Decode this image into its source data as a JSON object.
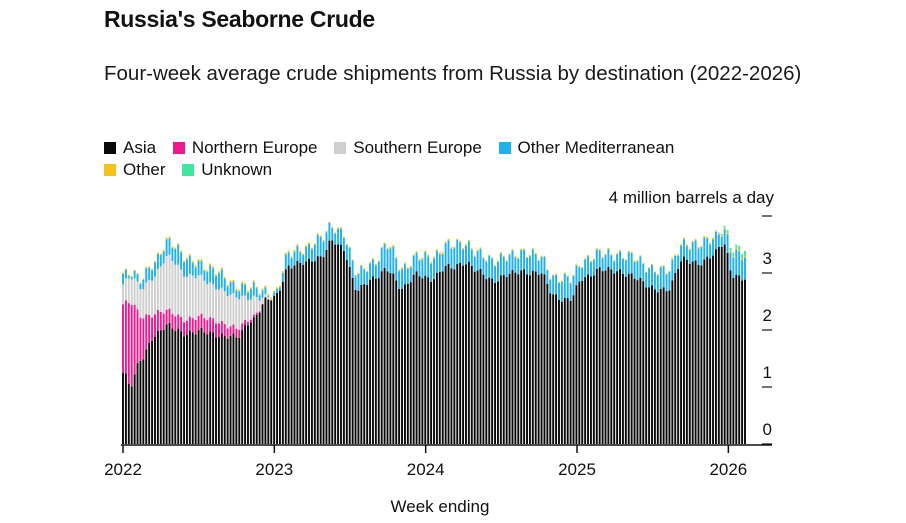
{
  "colors": {
    "Asia": "#0a0a0a",
    "Northern Europe": "#ec1a8c",
    "Southern Europe": "#cfcfcf",
    "Other Mediterranean": "#1fb0ee",
    "Other": "#f5c218",
    "Unknown": "#3ee6a0"
  },
  "chart_data": {
    "type": "bar",
    "stacked": true,
    "title": "Russia's Seaborne Crude",
    "subtitle": "Four-week average crude shipments from Russia by destination (2022-2026)",
    "xlabel": "Week ending",
    "ylabel": "4 million barrels a day",
    "ylim": [
      0,
      4
    ],
    "yticks": [
      "0",
      "1",
      "2",
      "3"
    ],
    "xticks": [
      "2022",
      "2023",
      "2024",
      "2025",
      "2026"
    ],
    "x_range": [
      2022.0,
      2026.11
    ],
    "legend": [
      "Asia",
      "Northern Europe",
      "Southern Europe",
      "Other Mediterranean",
      "Other",
      "Unknown"
    ],
    "series": [
      {
        "name": "Asia",
        "anchors": [
          [
            2022.0,
            1.25
          ],
          [
            2022.05,
            1.0
          ],
          [
            2022.12,
            1.5
          ],
          [
            2022.2,
            1.9
          ],
          [
            2022.3,
            2.05
          ],
          [
            2022.45,
            1.95
          ],
          [
            2022.6,
            1.95
          ],
          [
            2022.75,
            1.85
          ],
          [
            2022.85,
            2.2
          ],
          [
            2022.95,
            2.5
          ],
          [
            2023.0,
            2.55
          ],
          [
            2023.1,
            3.15
          ],
          [
            2023.2,
            3.15
          ],
          [
            2023.3,
            3.3
          ],
          [
            2023.38,
            3.55
          ],
          [
            2023.45,
            3.4
          ],
          [
            2023.55,
            2.75
          ],
          [
            2023.65,
            2.85
          ],
          [
            2023.75,
            3.1
          ],
          [
            2023.85,
            2.7
          ],
          [
            2023.95,
            3.0
          ],
          [
            2024.05,
            2.9
          ],
          [
            2024.15,
            3.1
          ],
          [
            2024.25,
            3.2
          ],
          [
            2024.35,
            3.0
          ],
          [
            2024.45,
            2.9
          ],
          [
            2024.55,
            2.95
          ],
          [
            2024.65,
            3.05
          ],
          [
            2024.75,
            3.0
          ],
          [
            2024.85,
            2.6
          ],
          [
            2024.95,
            2.55
          ],
          [
            2025.05,
            2.9
          ],
          [
            2025.15,
            3.1
          ],
          [
            2025.25,
            3.0
          ],
          [
            2025.35,
            3.0
          ],
          [
            2025.5,
            2.7
          ],
          [
            2025.6,
            2.75
          ],
          [
            2025.7,
            3.2
          ],
          [
            2025.8,
            3.2
          ],
          [
            2025.9,
            3.3
          ],
          [
            2025.97,
            3.5
          ],
          [
            2026.03,
            3.0
          ],
          [
            2026.11,
            2.9
          ]
        ]
      },
      {
        "name": "Northern Europe",
        "anchors": [
          [
            2022.0,
            1.2
          ],
          [
            2022.05,
            1.45
          ],
          [
            2022.12,
            0.75
          ],
          [
            2022.2,
            0.4
          ],
          [
            2022.3,
            0.25
          ],
          [
            2022.45,
            0.25
          ],
          [
            2022.6,
            0.25
          ],
          [
            2022.75,
            0.15
          ],
          [
            2022.85,
            0.05
          ],
          [
            2022.95,
            0.0
          ],
          [
            2023.0,
            0.0
          ],
          [
            2026.11,
            0.0
          ]
        ]
      },
      {
        "name": "Southern Europe",
        "anchors": [
          [
            2022.0,
            0.35
          ],
          [
            2022.05,
            0.45
          ],
          [
            2022.12,
            0.5
          ],
          [
            2022.2,
            0.65
          ],
          [
            2022.3,
            0.95
          ],
          [
            2022.45,
            0.75
          ],
          [
            2022.6,
            0.6
          ],
          [
            2022.75,
            0.55
          ],
          [
            2022.85,
            0.35
          ],
          [
            2022.95,
            0.05
          ],
          [
            2023.0,
            0.0
          ],
          [
            2026.11,
            0.0
          ]
        ]
      },
      {
        "name": "Other Mediterranean",
        "anchors": [
          [
            2022.0,
            0.15
          ],
          [
            2022.05,
            0.1
          ],
          [
            2022.12,
            0.15
          ],
          [
            2022.2,
            0.2
          ],
          [
            2022.3,
            0.3
          ],
          [
            2022.45,
            0.25
          ],
          [
            2022.6,
            0.25
          ],
          [
            2022.75,
            0.2
          ],
          [
            2022.85,
            0.15
          ],
          [
            2022.95,
            0.1
          ],
          [
            2023.0,
            0.05
          ],
          [
            2023.1,
            0.2
          ],
          [
            2023.2,
            0.25
          ],
          [
            2023.3,
            0.3
          ],
          [
            2023.38,
            0.25
          ],
          [
            2023.45,
            0.3
          ],
          [
            2023.55,
            0.25
          ],
          [
            2023.65,
            0.3
          ],
          [
            2023.75,
            0.4
          ],
          [
            2023.85,
            0.35
          ],
          [
            2023.95,
            0.3
          ],
          [
            2024.05,
            0.35
          ],
          [
            2024.15,
            0.4
          ],
          [
            2024.25,
            0.3
          ],
          [
            2024.35,
            0.35
          ],
          [
            2024.45,
            0.3
          ],
          [
            2024.55,
            0.35
          ],
          [
            2024.65,
            0.3
          ],
          [
            2024.75,
            0.3
          ],
          [
            2024.85,
            0.3
          ],
          [
            2024.95,
            0.35
          ],
          [
            2025.05,
            0.3
          ],
          [
            2025.15,
            0.25
          ],
          [
            2025.25,
            0.3
          ],
          [
            2025.35,
            0.3
          ],
          [
            2025.5,
            0.35
          ],
          [
            2025.6,
            0.3
          ],
          [
            2025.7,
            0.3
          ],
          [
            2025.8,
            0.3
          ],
          [
            2025.9,
            0.3
          ],
          [
            2025.97,
            0.25
          ],
          [
            2026.03,
            0.35
          ],
          [
            2026.11,
            0.4
          ]
        ]
      },
      {
        "name": "Other",
        "anchors": [
          [
            2022.0,
            0.02
          ],
          [
            2022.5,
            0.03
          ],
          [
            2023.0,
            0.03
          ],
          [
            2023.5,
            0.02
          ],
          [
            2024.0,
            0.03
          ],
          [
            2024.5,
            0.02
          ],
          [
            2025.0,
            0.02
          ],
          [
            2025.5,
            0.02
          ],
          [
            2026.11,
            0.03
          ]
        ]
      },
      {
        "name": "Unknown",
        "anchors": [
          [
            2022.0,
            0.0
          ],
          [
            2025.9,
            0.0
          ],
          [
            2026.03,
            0.05
          ],
          [
            2026.11,
            0.08
          ]
        ]
      }
    ]
  }
}
